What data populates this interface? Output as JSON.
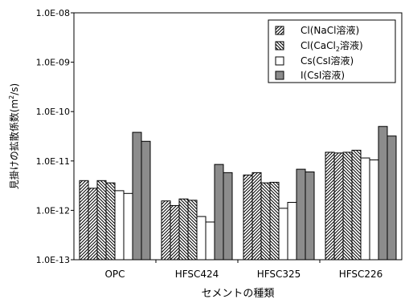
{
  "chart_data": {
    "type": "bar",
    "title": "",
    "xlabel": "セメントの種類",
    "ylabel_main": "見掛けの拡散係数(m",
    "ylabel_sup": "2",
    "ylabel_tail": "/s)",
    "yscale": "log",
    "ylim": [
      1e-13,
      1e-08
    ],
    "yticks": [
      "1.0E-13",
      "1.0E-12",
      "1.0E-11",
      "1.0E-10",
      "1.0E-09",
      "1.0E-08"
    ],
    "categories": [
      "OPC",
      "HFSC424",
      "HFSC325",
      "HFSC226"
    ],
    "bars_per_series_per_category": 2,
    "series": [
      {
        "name": "Cl(NaCl溶液)",
        "pattern": "diag-forward",
        "values": [
          [
            4e-12,
            2.8e-12
          ],
          [
            1.55e-12,
            1.25e-12
          ],
          [
            5.2e-12,
            5.8e-12
          ],
          [
            1.5e-11,
            1.45e-11
          ]
        ]
      },
      {
        "name": "Cl(CaCl₂溶液)",
        "pattern": "diag-back",
        "values": [
          [
            4e-12,
            3.6e-12
          ],
          [
            1.7e-12,
            1.6e-12
          ],
          [
            3.6e-12,
            3.7e-12
          ],
          [
            1.5e-11,
            1.65e-11
          ]
        ]
      },
      {
        "name": "Cs(CsI溶液)",
        "pattern": "white",
        "values": [
          [
            2.5e-12,
            2.2e-12
          ],
          [
            7.5e-13,
            5.8e-13
          ],
          [
            1.1e-12,
            1.45e-12
          ],
          [
            1.15e-11,
            1.05e-11
          ]
        ]
      },
      {
        "name": "I(CsI溶液)",
        "pattern": "gray",
        "values": [
          [
            3.8e-11,
            2.5e-11
          ],
          [
            8.5e-12,
            5.8e-12
          ],
          [
            6.8e-12,
            6e-12
          ],
          [
            5e-11,
            3.2e-11
          ]
        ]
      }
    ],
    "legend": {
      "placement": "top-right",
      "labels": [
        "Cl(NaCl溶液)",
        "Cl(CaCl",
        "2",
        "溶液)",
        "Cs(CsI溶液)",
        "I(CsI溶液)"
      ]
    },
    "colors": {
      "gray_fill": "#8c8c8c",
      "outline": "#000000",
      "hatch": "#000000"
    }
  }
}
